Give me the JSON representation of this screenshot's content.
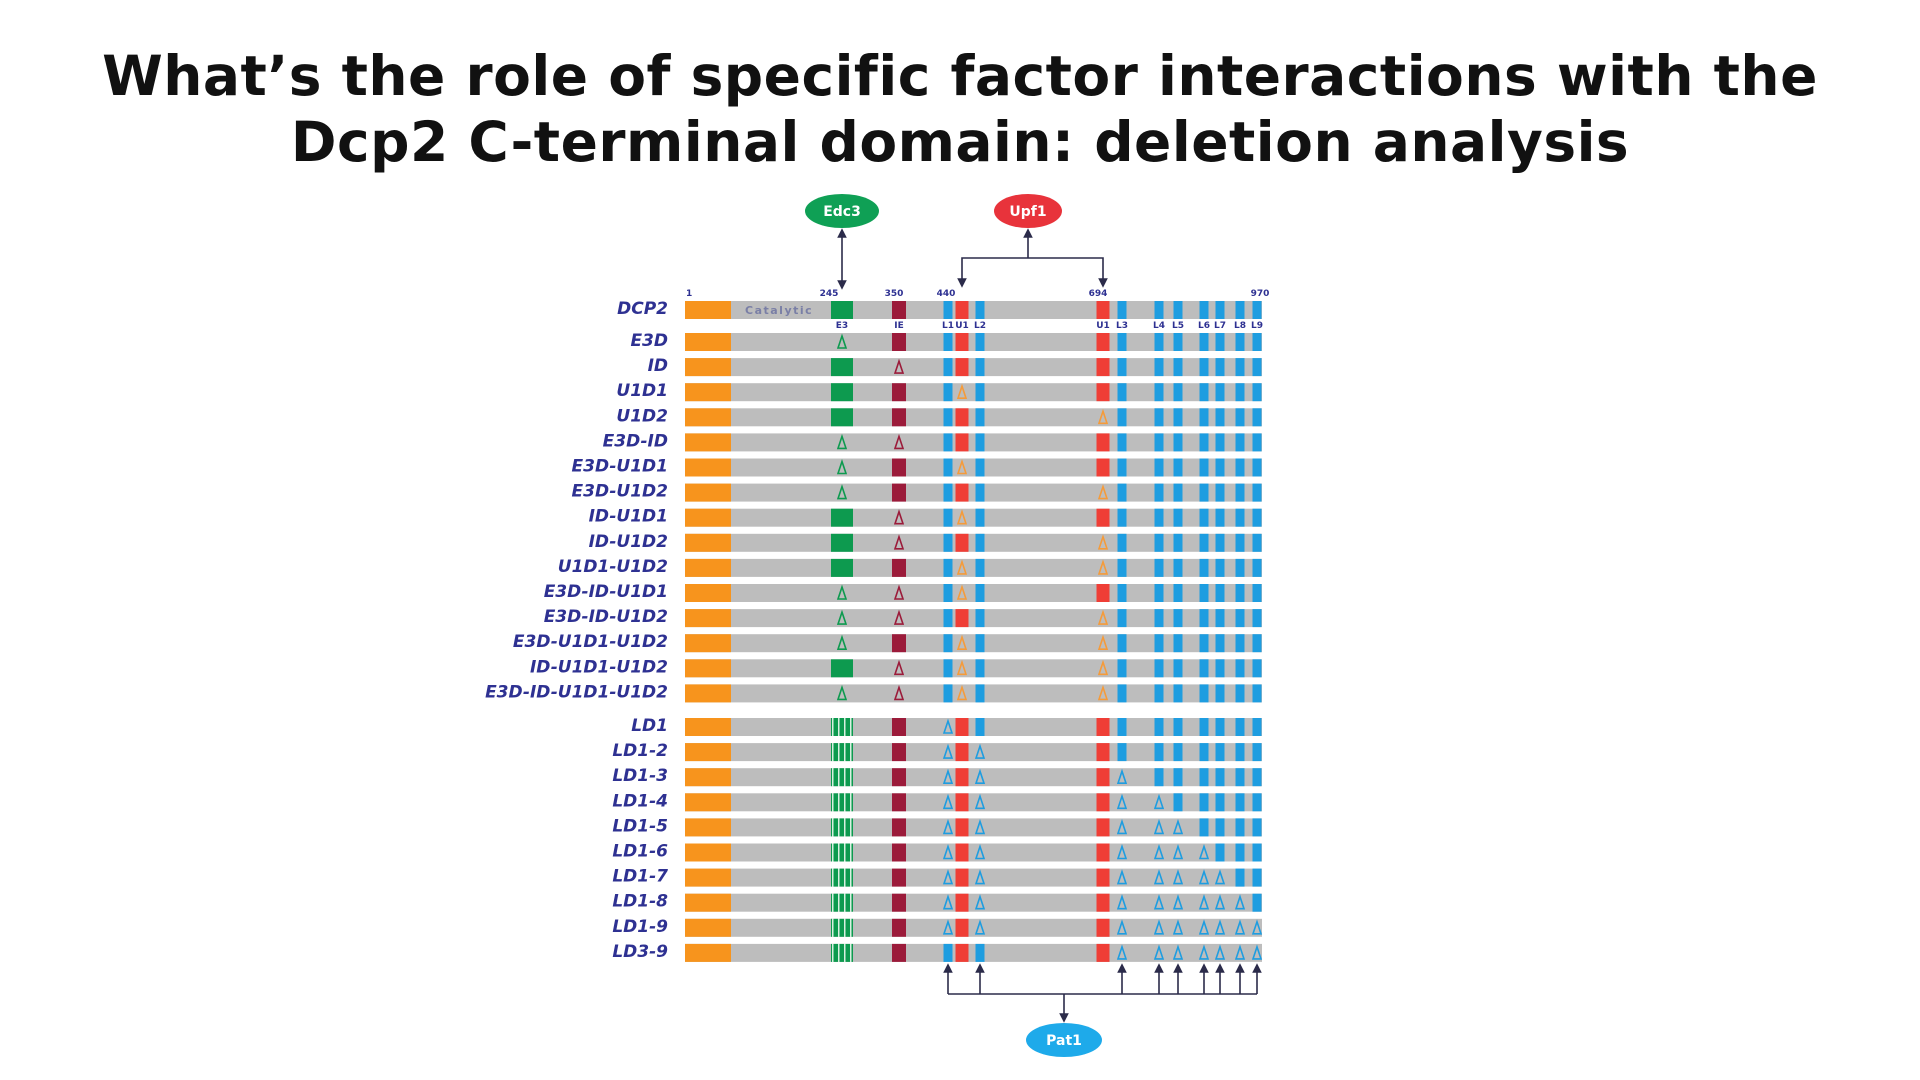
{
  "title": {
    "line1": "What’s the role of specific factor interactions with the",
    "line2": "Dcp2 C-terminal domain: deletion analysis"
  },
  "factors": {
    "edc3": {
      "label": "Edc3",
      "color": "#0fa055"
    },
    "upf1": {
      "label": "Upf1",
      "color": "#e8333b"
    },
    "pat1": {
      "label": "Pat1",
      "color": "#1eaaea"
    }
  },
  "protein": {
    "name": "DCP2",
    "length": 970,
    "catalytic_label": "Catalytic",
    "positions": [
      {
        "label": "1",
        "aa": 1
      },
      {
        "label": "245",
        "aa": 245
      },
      {
        "label": "350",
        "aa": 350
      },
      {
        "label": "440",
        "aa": 440
      },
      {
        "label": "694",
        "aa": 694
      },
      {
        "label": "970",
        "aa": 970
      }
    ]
  },
  "colors": {
    "backbone": "#bdbdbd",
    "catalytic": "#f7941d",
    "E3": "#0d9a4f",
    "IE": "#9b1b3a",
    "U": "#ef3e36",
    "L": "#1e9de0",
    "deleted_E3": "#0d9a4f",
    "deleted_IE": "#9b1b3a",
    "deleted_U": "#f59b3a",
    "deleted_L": "#1e9de0"
  },
  "motifs": [
    {
      "id": "E3",
      "label": "E3",
      "color_key": "E3"
    },
    {
      "id": "IE",
      "label": "IE",
      "color_key": "IE"
    },
    {
      "id": "L1",
      "label": "L1",
      "color_key": "L"
    },
    {
      "id": "U1a",
      "label": "U1",
      "color_key": "U"
    },
    {
      "id": "L2",
      "label": "L2",
      "color_key": "L"
    },
    {
      "id": "U1b",
      "label": "U1",
      "color_key": "U"
    },
    {
      "id": "L3",
      "label": "L3",
      "color_key": "L"
    },
    {
      "id": "L4",
      "label": "L4",
      "color_key": "L"
    },
    {
      "id": "L5",
      "label": "L5",
      "color_key": "L"
    },
    {
      "id": "L6",
      "label": "L6",
      "color_key": "L"
    },
    {
      "id": "L7",
      "label": "L7",
      "color_key": "L"
    },
    {
      "id": "L8",
      "label": "L8",
      "color_key": "L"
    },
    {
      "id": "L9",
      "label": "L9",
      "color_key": "L"
    }
  ],
  "constructs": [
    {
      "name": "E3D",
      "deleted": [
        "E3"
      ],
      "group": 1
    },
    {
      "name": "ID",
      "deleted": [
        "IE"
      ],
      "group": 1
    },
    {
      "name": "U1D1",
      "deleted": [
        "U1a"
      ],
      "group": 1
    },
    {
      "name": "U1D2",
      "deleted": [
        "U1b"
      ],
      "group": 1
    },
    {
      "name": "E3D-ID",
      "deleted": [
        "E3",
        "IE"
      ],
      "group": 1
    },
    {
      "name": "E3D-U1D1",
      "deleted": [
        "E3",
        "U1a"
      ],
      "group": 1
    },
    {
      "name": "E3D-U1D2",
      "deleted": [
        "E3",
        "U1b"
      ],
      "group": 1
    },
    {
      "name": "ID-U1D1",
      "deleted": [
        "IE",
        "U1a"
      ],
      "group": 1
    },
    {
      "name": "ID-U1D2",
      "deleted": [
        "IE",
        "U1b"
      ],
      "group": 1
    },
    {
      "name": "U1D1-U1D2",
      "deleted": [
        "U1a",
        "U1b"
      ],
      "group": 1
    },
    {
      "name": "E3D-ID-U1D1",
      "deleted": [
        "E3",
        "IE",
        "U1a"
      ],
      "group": 1
    },
    {
      "name": "E3D-ID-U1D2",
      "deleted": [
        "E3",
        "IE",
        "U1b"
      ],
      "group": 1
    },
    {
      "name": "E3D-U1D1-U1D2",
      "deleted": [
        "E3",
        "U1a",
        "U1b"
      ],
      "group": 1
    },
    {
      "name": "ID-U1D1-U1D2",
      "deleted": [
        "IE",
        "U1a",
        "U1b"
      ],
      "group": 1
    },
    {
      "name": "E3D-ID-U1D1-U1D2",
      "deleted": [
        "E3",
        "IE",
        "U1a",
        "U1b"
      ],
      "group": 1
    },
    {
      "name": "LD1",
      "deleted": [
        "L1"
      ],
      "group": 2
    },
    {
      "name": "LD1-2",
      "deleted": [
        "L1",
        "L2"
      ],
      "group": 2
    },
    {
      "name": "LD1-3",
      "deleted": [
        "L1",
        "L2",
        "L3"
      ],
      "group": 2
    },
    {
      "name": "LD1-4",
      "deleted": [
        "L1",
        "L2",
        "L3",
        "L4"
      ],
      "group": 2
    },
    {
      "name": "LD1-5",
      "deleted": [
        "L1",
        "L2",
        "L3",
        "L4",
        "L5"
      ],
      "group": 2
    },
    {
      "name": "LD1-6",
      "deleted": [
        "L1",
        "L2",
        "L3",
        "L4",
        "L5",
        "L6"
      ],
      "group": 2
    },
    {
      "name": "LD1-7",
      "deleted": [
        "L1",
        "L2",
        "L3",
        "L4",
        "L5",
        "L6",
        "L7"
      ],
      "group": 2
    },
    {
      "name": "LD1-8",
      "deleted": [
        "L1",
        "L2",
        "L3",
        "L4",
        "L5",
        "L6",
        "L7",
        "L8"
      ],
      "group": 2
    },
    {
      "name": "LD1-9",
      "deleted": [
        "L1",
        "L2",
        "L3",
        "L4",
        "L5",
        "L6",
        "L7",
        "L8",
        "L9"
      ],
      "group": 2
    },
    {
      "name": "LD3-9",
      "deleted": [
        "L3",
        "L4",
        "L5",
        "L6",
        "L7",
        "L8",
        "L9"
      ],
      "group": 2
    }
  ],
  "interactions": [
    {
      "factor": "edc3",
      "motifs": [
        "E3"
      ]
    },
    {
      "factor": "upf1",
      "motifs": [
        "U1a",
        "U1b"
      ]
    },
    {
      "factor": "pat1",
      "motifs": [
        "L1",
        "L2",
        "L3",
        "L4",
        "L5",
        "L6",
        "L7",
        "L8",
        "L9"
      ]
    }
  ]
}
